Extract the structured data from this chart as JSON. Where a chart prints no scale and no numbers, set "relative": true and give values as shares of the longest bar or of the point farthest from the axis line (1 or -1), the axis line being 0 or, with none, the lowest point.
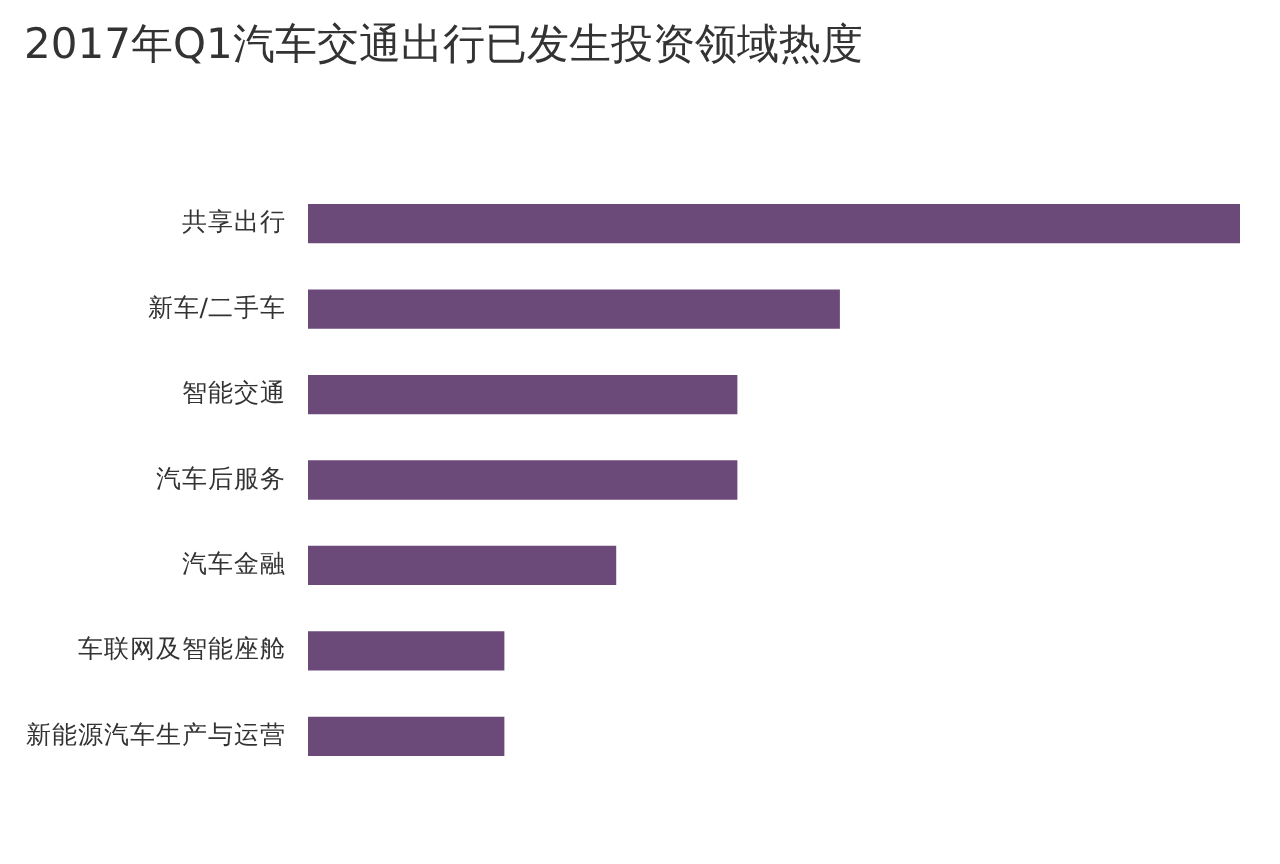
{
  "chart_data": {
    "type": "bar",
    "orientation": "horizontal",
    "relative": true,
    "title": "2017年Q1汽车交通出行已发生投资领域热度",
    "categories": [
      "共享出行",
      "新车/二手车",
      "智能交通",
      "汽车后服务",
      "汽车金融",
      "车联网及智能座舱",
      "新能源汽车生产与运营"
    ],
    "values": [
      1,
      0.57,
      0.46,
      0.46,
      0.33,
      0.21,
      0.21
    ],
    "color": "#6b4a7a"
  }
}
